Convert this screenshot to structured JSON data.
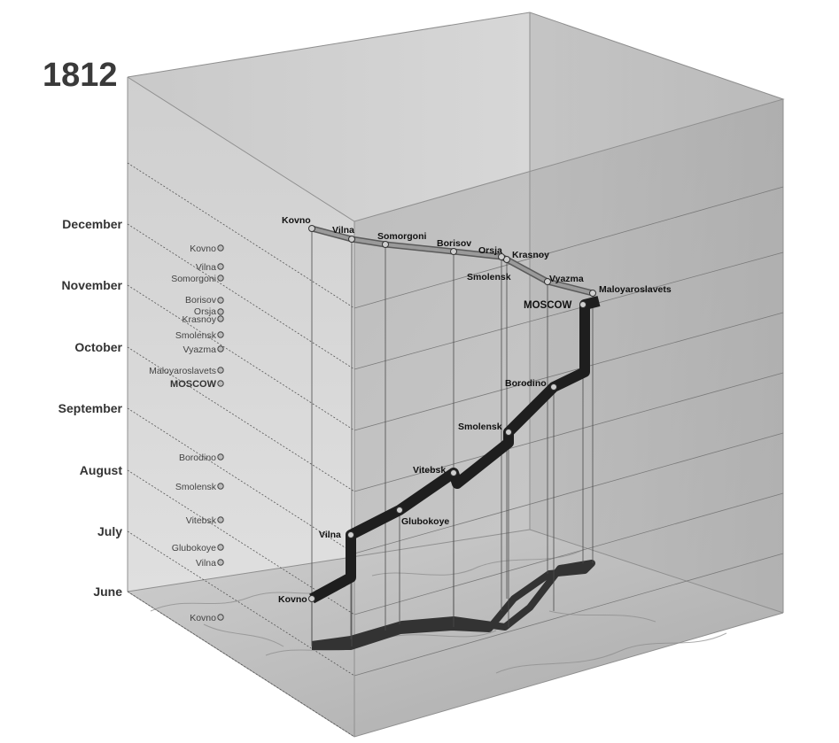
{
  "title": "1812",
  "months": [
    "June",
    "July",
    "August",
    "September",
    "October",
    "November",
    "December"
  ],
  "route_labels": {
    "advance": [
      {
        "id": "kovno",
        "text": "Kovno"
      },
      {
        "id": "vilna",
        "text": "Vilna"
      },
      {
        "id": "glubokoye",
        "text": "Glubokoye"
      },
      {
        "id": "vitebsk",
        "text": "Vitebsk"
      },
      {
        "id": "smolensk",
        "text": "Smolensk"
      },
      {
        "id": "borodino",
        "text": "Borodino"
      },
      {
        "id": "moscow",
        "text": "MOSCOW"
      }
    ],
    "retreat": [
      {
        "id": "maloyaroslavets",
        "text": "Maloyaroslavets"
      },
      {
        "id": "vyazma",
        "text": "Vyazma"
      },
      {
        "id": "smolensk2",
        "text": "Smolensk"
      },
      {
        "id": "krasnoy",
        "text": "Krasnoy"
      },
      {
        "id": "orsja",
        "text": "Orsja"
      },
      {
        "id": "borisov",
        "text": "Borisov"
      },
      {
        "id": "somorgoni",
        "text": "Somorgoni"
      },
      {
        "id": "vilna2",
        "text": "Vilna"
      },
      {
        "id": "kovno2",
        "text": "Kovno"
      }
    ]
  },
  "timeline_list": [
    {
      "text": "Kovno"
    },
    {
      "text": "Vilna"
    },
    {
      "text": "Glubokoye"
    },
    {
      "text": "Vitebsk"
    },
    {
      "text": "Smolensk"
    },
    {
      "text": "Borodino"
    },
    {
      "text": "MOSCOW"
    },
    {
      "text": "Maloyaroslavets"
    },
    {
      "text": "Vyazma"
    },
    {
      "text": "Smolensk"
    },
    {
      "text": "Krasnoy"
    },
    {
      "text": "Orsja"
    },
    {
      "text": "Borisov"
    },
    {
      "text": "Somorgoni"
    },
    {
      "text": "Vilna"
    },
    {
      "text": "Kovno"
    }
  ],
  "colors": {
    "advance": "#222222",
    "retreat": "#777777",
    "back_wall": "#c4c4c4",
    "side_wall": "#a8a8a8",
    "top": "#d6d6d6",
    "left_wall": "#dcdcdc",
    "floor": "#b9b9b9"
  }
}
